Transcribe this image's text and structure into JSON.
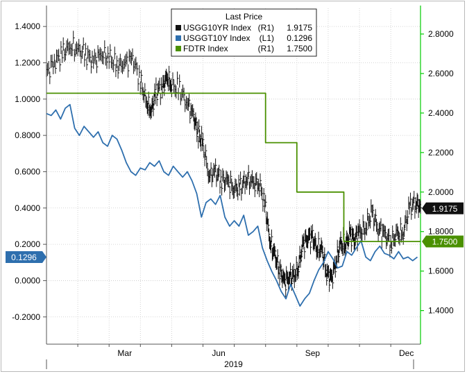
{
  "chart_data": {
    "type": "line",
    "legend": {
      "title": "Last Price",
      "placement": "top-center",
      "entries": [
        {
          "color_key": "black",
          "name": "USGG10YR Index",
          "axis": "(R1)",
          "value": "1.9175"
        },
        {
          "color_key": "blue",
          "name": "USGGT10Y Index",
          "axis": "(L1)",
          "value": "0.1296"
        },
        {
          "color_key": "green",
          "name": "FDTR Index",
          "axis": "(R1)",
          "value": "1.7500"
        }
      ]
    },
    "colors": {
      "black": "#111111",
      "blue": "#2e6fae",
      "green": "#4a9000",
      "right_axis": "#00cc00"
    },
    "x_axis": {
      "ticks": [
        "Mar",
        "Jun",
        "Sep",
        "Dec"
      ],
      "tick_months": [
        3,
        6,
        9,
        12
      ],
      "year_label": "2019",
      "range_months": [
        1.0,
        12.95
      ]
    },
    "y_left": {
      "ticks": [
        "1.4000",
        "1.2000",
        "1.0000",
        "0.8000",
        "0.6000",
        "0.4000",
        "0.2000",
        "0.0000",
        "-0.2000"
      ],
      "range": [
        -0.35,
        1.5
      ]
    },
    "y_right": {
      "ticks": [
        "2.8000",
        "2.6000",
        "2.4000",
        "2.2000",
        "2.0000",
        "1.8000",
        "1.6000",
        "1.4000"
      ],
      "range": [
        1.23,
        2.93
      ]
    },
    "value_tags": [
      {
        "text": "1.9175",
        "side": "right",
        "series": "black",
        "value": 1.9175
      },
      {
        "text": "1.7500",
        "side": "right",
        "series": "green",
        "value": 1.75
      },
      {
        "text": "0.1296",
        "side": "left",
        "series": "blue",
        "value": 0.1296
      }
    ],
    "series": [
      {
        "key": "black",
        "name": "USGG10YR Index",
        "axis": "right",
        "style": "hlc",
        "x": [
          1.0,
          1.25,
          1.5,
          1.75,
          2.0,
          2.25,
          2.5,
          2.75,
          3.0,
          3.25,
          3.5,
          3.75,
          4.0,
          4.2,
          4.35,
          4.5,
          4.7,
          4.85,
          5.0,
          5.25,
          5.5,
          5.7,
          5.85,
          6.0,
          6.2,
          6.4,
          6.6,
          6.8,
          7.0,
          7.2,
          7.4,
          7.6,
          7.8,
          8.0,
          8.15,
          8.3,
          8.45,
          8.6,
          8.75,
          8.9,
          9.05,
          9.2,
          9.35,
          9.5,
          9.65,
          9.8,
          9.95,
          10.1,
          10.25,
          10.4,
          10.55,
          10.7,
          10.85,
          11.0,
          11.2,
          11.4,
          11.6,
          11.8,
          12.0,
          12.2,
          12.4,
          12.6,
          12.8,
          12.95
        ],
        "y": [
          2.6,
          2.66,
          2.7,
          2.74,
          2.72,
          2.7,
          2.66,
          2.7,
          2.68,
          2.64,
          2.65,
          2.68,
          2.56,
          2.45,
          2.41,
          2.51,
          2.53,
          2.58,
          2.54,
          2.52,
          2.45,
          2.38,
          2.3,
          2.24,
          2.08,
          2.1,
          2.06,
          2.05,
          2.02,
          2.02,
          2.07,
          2.04,
          2.05,
          1.91,
          1.75,
          1.67,
          1.61,
          1.54,
          1.58,
          1.56,
          1.63,
          1.73,
          1.78,
          1.76,
          1.72,
          1.7,
          1.6,
          1.55,
          1.66,
          1.73,
          1.74,
          1.78,
          1.77,
          1.79,
          1.83,
          1.89,
          1.82,
          1.78,
          1.75,
          1.78,
          1.8,
          1.92,
          1.95,
          1.92
        ]
      },
      {
        "key": "blue",
        "name": "USGGT10Y Index",
        "axis": "left",
        "style": "line",
        "x": [
          1.0,
          1.15,
          1.3,
          1.45,
          1.6,
          1.75,
          1.9,
          2.05,
          2.2,
          2.35,
          2.5,
          2.65,
          2.8,
          2.95,
          3.1,
          3.25,
          3.4,
          3.55,
          3.7,
          3.85,
          4.0,
          4.15,
          4.3,
          4.45,
          4.6,
          4.75,
          4.9,
          5.05,
          5.2,
          5.35,
          5.5,
          5.65,
          5.8,
          5.95,
          6.1,
          6.25,
          6.4,
          6.55,
          6.7,
          6.85,
          7.0,
          7.15,
          7.3,
          7.45,
          7.6,
          7.75,
          7.9,
          8.05,
          8.2,
          8.35,
          8.5,
          8.65,
          8.8,
          8.95,
          9.1,
          9.25,
          9.4,
          9.55,
          9.7,
          9.85,
          10.0,
          10.15,
          10.3,
          10.45,
          10.6,
          10.75,
          10.9,
          11.05,
          11.2,
          11.35,
          11.5,
          11.65,
          11.8,
          11.95,
          12.1,
          12.25,
          12.4,
          12.55,
          12.7,
          12.85
        ],
        "y": [
          0.92,
          0.91,
          0.94,
          0.89,
          0.95,
          0.97,
          0.84,
          0.8,
          0.85,
          0.82,
          0.79,
          0.82,
          0.76,
          0.74,
          0.8,
          0.78,
          0.72,
          0.65,
          0.6,
          0.58,
          0.62,
          0.61,
          0.65,
          0.63,
          0.66,
          0.6,
          0.58,
          0.63,
          0.6,
          0.57,
          0.6,
          0.55,
          0.48,
          0.35,
          0.43,
          0.45,
          0.42,
          0.47,
          0.35,
          0.3,
          0.33,
          0.3,
          0.36,
          0.25,
          0.27,
          0.3,
          0.18,
          0.11,
          0.05,
          0.0,
          -0.06,
          -0.1,
          -0.02,
          -0.08,
          -0.14,
          -0.1,
          -0.07,
          -0.0,
          0.06,
          0.1,
          0.16,
          0.12,
          0.07,
          0.08,
          0.16,
          0.14,
          0.18,
          0.22,
          0.13,
          0.11,
          0.16,
          0.19,
          0.15,
          0.14,
          0.12,
          0.16,
          0.12,
          0.13,
          0.11,
          0.13
        ]
      },
      {
        "key": "green",
        "name": "FDTR Index",
        "axis": "right",
        "style": "step",
        "x": [
          1.0,
          8.0,
          8.0,
          9.0,
          9.0,
          10.5,
          10.5,
          12.95
        ],
        "y": [
          2.5,
          2.5,
          2.25,
          2.25,
          2.0,
          2.0,
          1.75,
          1.75
        ]
      }
    ]
  }
}
